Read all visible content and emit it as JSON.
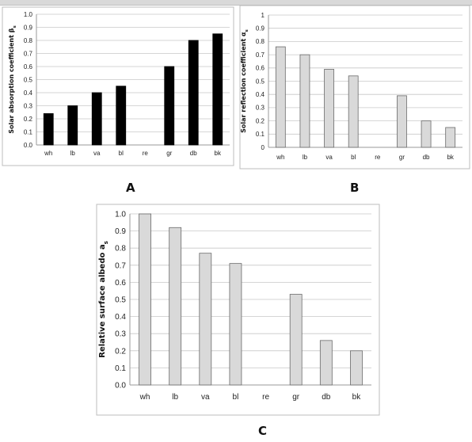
{
  "panels": {
    "a": "A",
    "b": "B",
    "c": "C"
  },
  "chart_data": [
    {
      "id": "A",
      "type": "bar",
      "categories": [
        "wh",
        "lb",
        "va",
        "bl",
        "re",
        "gr",
        "db",
        "bk"
      ],
      "values": [
        0.24,
        0.3,
        0.4,
        0.45,
        null,
        0.6,
        0.8,
        0.85
      ],
      "ylabel_parts": [
        "Solar",
        "absorption coefficient β",
        "s"
      ],
      "ylim": [
        0,
        1.0
      ],
      "yticks": [
        "0.0",
        "0.1",
        "0.2",
        "0.3",
        "0.4",
        "0.5",
        "0.6",
        "0.7",
        "0.8",
        "0.9",
        "1.0"
      ],
      "bar_color": "#000000",
      "grid": true
    },
    {
      "id": "B",
      "type": "bar",
      "categories": [
        "wh",
        "lb",
        "va",
        "bl",
        "re",
        "gr",
        "db",
        "bk"
      ],
      "values": [
        0.76,
        0.7,
        0.59,
        0.54,
        null,
        0.39,
        0.2,
        0.15
      ],
      "ylabel_parts": [
        "Solar",
        "reflection coefficient α",
        "s"
      ],
      "ylim": [
        0,
        1.0
      ],
      "yticks": [
        "0",
        "0.1",
        "0.2",
        "0.3",
        "0.4",
        "0.5",
        "0.6",
        "0.7",
        "0.8",
        "0.9",
        "1"
      ],
      "bar_color": "#d9d9d9",
      "grid": true
    },
    {
      "id": "C",
      "type": "bar",
      "categories": [
        "wh",
        "lb",
        "va",
        "bl",
        "re",
        "gr",
        "db",
        "bk"
      ],
      "values": [
        1.0,
        0.92,
        0.77,
        0.71,
        null,
        0.53,
        0.26,
        0.2
      ],
      "ylabel_parts": [
        "Relative",
        "surface albedo a",
        "s"
      ],
      "ylim": [
        0,
        1.0
      ],
      "yticks": [
        "0.0",
        "0.1",
        "0.2",
        "0.3",
        "0.4",
        "0.5",
        "0.6",
        "0.7",
        "0.8",
        "0.9",
        "1.0"
      ],
      "bar_color": "#d9d9d9",
      "grid": true
    }
  ]
}
